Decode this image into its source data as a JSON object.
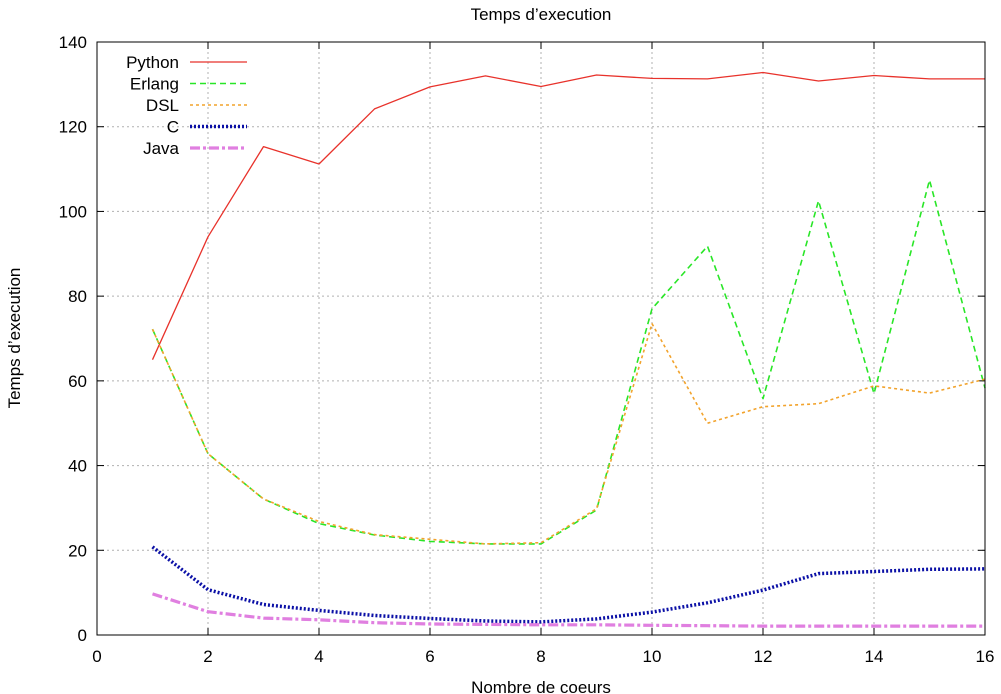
{
  "chart_data": {
    "type": "line",
    "title": "Temps d’execution",
    "xlabel": "Nombre de coeurs",
    "ylabel": "Temps d’execution",
    "xlim": [
      0,
      16
    ],
    "ylim": [
      0,
      140
    ],
    "xticks": [
      0,
      2,
      4,
      6,
      8,
      10,
      12,
      14,
      16
    ],
    "yticks": [
      0,
      20,
      40,
      60,
      80,
      100,
      120,
      140
    ],
    "grid": true,
    "legend_position": "top-left",
    "x": [
      1,
      2,
      3,
      4,
      5,
      6,
      7,
      8,
      9,
      10,
      11,
      12,
      13,
      14,
      15,
      16
    ],
    "series": [
      {
        "name": "Python",
        "color": "#e8322b",
        "style": "solid",
        "values": [
          65,
          94,
          115.3,
          111.2,
          124.2,
          129.4,
          132,
          129.5,
          132.2,
          131.4,
          131.3,
          132.8,
          130.8,
          132.1,
          131.3,
          131.3
        ]
      },
      {
        "name": "Erlang",
        "color": "#29e627",
        "style": "dashed",
        "values": [
          72.2,
          42.8,
          32.1,
          26.3,
          23.6,
          22.1,
          21.5,
          21.5,
          29.5,
          77,
          91.8,
          55.8,
          102.5,
          57,
          107.4,
          58.3
        ]
      },
      {
        "name": "DSL",
        "color": "#f2a32c",
        "style": "dotted",
        "values": [
          72.2,
          42.8,
          32.1,
          26.8,
          23.7,
          22.6,
          21.5,
          21.8,
          29.8,
          73.5,
          50,
          53.9,
          54.6,
          58.8,
          57.1,
          60.4
        ]
      },
      {
        "name": "C",
        "color": "#0b10a6",
        "style": "thick-dotted",
        "values": [
          20.8,
          10.7,
          7.2,
          5.8,
          4.6,
          3.9,
          3.3,
          3.1,
          3.8,
          5.4,
          7.6,
          10.6,
          14.5,
          15,
          15.5,
          15.6
        ]
      },
      {
        "name": "Java",
        "color": "#e07fe0",
        "style": "dash-dot",
        "values": [
          9.7,
          5.5,
          4,
          3.6,
          2.9,
          2.6,
          2.5,
          2.4,
          2.4,
          2.3,
          2.2,
          2.1,
          2.1,
          2.1,
          2.1,
          2.1
        ]
      }
    ]
  }
}
